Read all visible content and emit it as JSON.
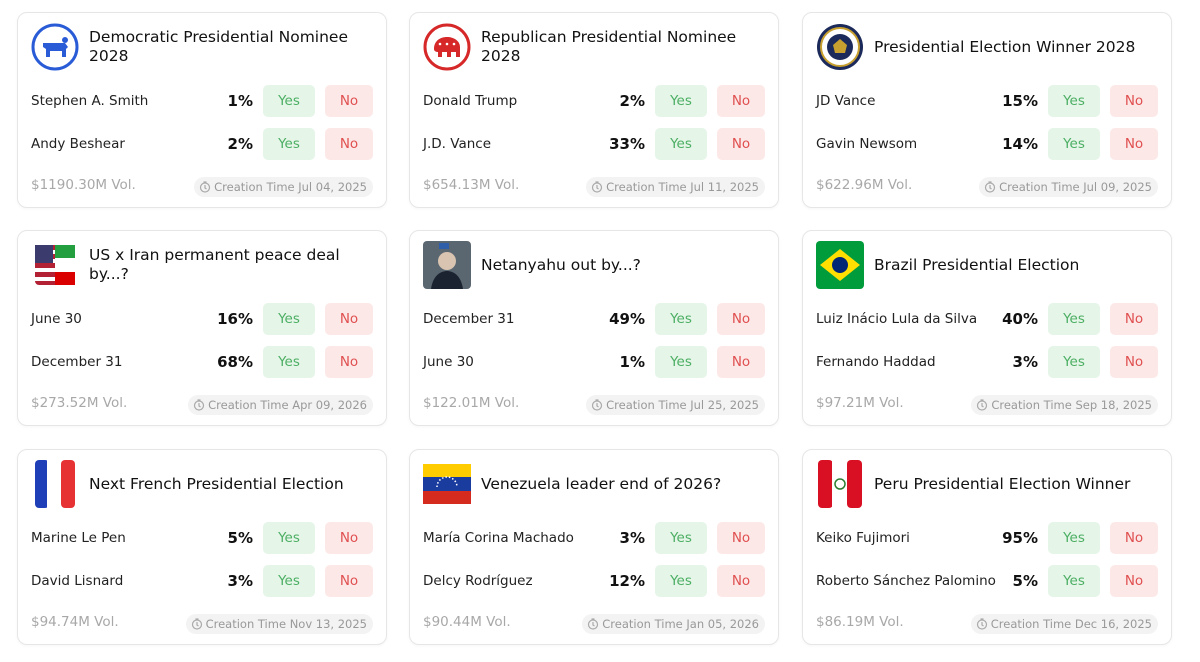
{
  "yes_label": "Yes",
  "no_label": "No",
  "markets": [
    {
      "title": "Democratic Presidential Nominee 2028",
      "outcomes": [
        {
          "name": "Stephen A. Smith",
          "percent": "1%"
        },
        {
          "name": "Andy Beshear",
          "percent": "2%"
        }
      ],
      "volume": "$1190.30M Vol.",
      "created": "Creation Time Jul 04, 2025"
    },
    {
      "title": "Republican Presidential Nominee 2028",
      "outcomes": [
        {
          "name": "Donald Trump",
          "percent": "2%"
        },
        {
          "name": "J.D. Vance",
          "percent": "33%"
        }
      ],
      "volume": "$654.13M Vol.",
      "created": "Creation Time Jul 11, 2025"
    },
    {
      "title": "Presidential Election Winner 2028",
      "outcomes": [
        {
          "name": "JD Vance",
          "percent": "15%"
        },
        {
          "name": "Gavin Newsom",
          "percent": "14%"
        }
      ],
      "volume": "$622.96M Vol.",
      "created": "Creation Time Jul 09, 2025"
    },
    {
      "title": "US x Iran permanent peace deal by...?",
      "outcomes": [
        {
          "name": "June 30",
          "percent": "16%"
        },
        {
          "name": "December 31",
          "percent": "68%"
        }
      ],
      "volume": "$273.52M Vol.",
      "created": "Creation Time Apr 09, 2026"
    },
    {
      "title": "Netanyahu out by...?",
      "outcomes": [
        {
          "name": "December 31",
          "percent": "49%"
        },
        {
          "name": "June 30",
          "percent": "1%"
        }
      ],
      "volume": "$122.01M Vol.",
      "created": "Creation Time Jul 25, 2025"
    },
    {
      "title": "Brazil Presidential Election",
      "outcomes": [
        {
          "name": "Luiz Inácio Lula da Silva",
          "percent": "40%"
        },
        {
          "name": "Fernando Haddad",
          "percent": "3%"
        }
      ],
      "volume": "$97.21M Vol.",
      "created": "Creation Time Sep 18, 2025"
    },
    {
      "title": "Next French Presidential Election",
      "outcomes": [
        {
          "name": "Marine Le Pen",
          "percent": "5%"
        },
        {
          "name": "David Lisnard",
          "percent": "3%"
        }
      ],
      "volume": "$94.74M Vol.",
      "created": "Creation Time Nov 13, 2025"
    },
    {
      "title": "Venezuela leader end of 2026?",
      "outcomes": [
        {
          "name": "María Corina Machado",
          "percent": "3%"
        },
        {
          "name": "Delcy Rodríguez",
          "percent": "12%"
        }
      ],
      "volume": "$90.44M Vol.",
      "created": "Creation Time Jan 05, 2026"
    },
    {
      "title": "Peru Presidential Election Winner",
      "outcomes": [
        {
          "name": "Keiko Fujimori",
          "percent": "95%"
        },
        {
          "name": "Roberto Sánchez Palomino",
          "percent": "5%"
        }
      ],
      "volume": "$86.19M Vol.",
      "created": "Creation Time Dec 16, 2025"
    }
  ]
}
